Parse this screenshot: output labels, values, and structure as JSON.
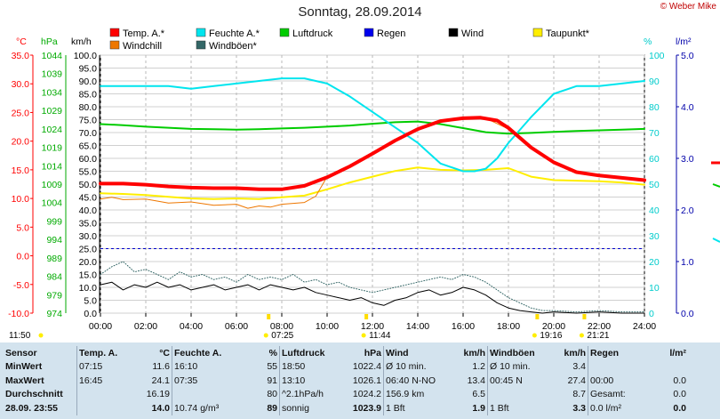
{
  "header": {
    "title": "Sonntag, 28.09.2014",
    "credit": "© Weber Mike"
  },
  "axis_units": {
    "temp": "°C",
    "pressure": "hPa",
    "wind": "km/h",
    "humidity": "%",
    "rain": "l/m²"
  },
  "legend": [
    {
      "label": "Temp. A.*",
      "color": "#ff0000"
    },
    {
      "label": "Feuchte A.*",
      "color": "#00e5ee"
    },
    {
      "label": "Luftdruck",
      "color": "#00cc00"
    },
    {
      "label": "Regen",
      "color": "#0000ee"
    },
    {
      "label": "Wind",
      "color": "#000000"
    },
    {
      "label": "Taupunkt*",
      "color": "#ffee00"
    },
    {
      "label": "Windchill",
      "color": "#ee7700"
    },
    {
      "label": "Windböen*",
      "color": "#336666"
    }
  ],
  "time_marks": [
    {
      "label": "11:50",
      "hour": 0
    },
    {
      "label": "07:25",
      "hour": 7.42
    },
    {
      "label": "11:44",
      "hour": 11.73
    },
    {
      "label": "19:16",
      "hour": 19.27
    },
    {
      "label": "21:21",
      "hour": 21.35
    }
  ],
  "chart_data": {
    "type": "line",
    "x_ticks": [
      "00:00",
      "02:00",
      "04:00",
      "06:00",
      "08:00",
      "10:00",
      "12:00",
      "14:00",
      "16:00",
      "18:00",
      "20:00",
      "22:00",
      "24:00"
    ],
    "x_range": [
      0,
      24
    ],
    "axes": {
      "temp": {
        "min": -10,
        "max": 35,
        "ticks": [
          "35.0",
          "30.0",
          "25.0",
          "20.0",
          "15.0",
          "10.0",
          "5.0",
          "0.0",
          "-5.0",
          "-10.0"
        ],
        "color": "#ff0000"
      },
      "pressure": {
        "min": 974,
        "max": 1044,
        "ticks": [
          "1044",
          "1039",
          "1034",
          "1029",
          "1024",
          "1019",
          "1014",
          "1009",
          "1004",
          "999",
          "994",
          "989",
          "984",
          "979",
          "974"
        ],
        "color": "#00aa00"
      },
      "wind": {
        "min": 0,
        "max": 100,
        "ticks": [
          "100.0",
          "95.0",
          "90.0",
          "85.0",
          "80.0",
          "75.0",
          "70.0",
          "65.0",
          "60.0",
          "55.0",
          "50.0",
          "45.0",
          "40.0",
          "35.0",
          "30.0",
          "25.0",
          "20.0",
          "15.0",
          "10.0",
          "5.0",
          "0.0"
        ],
        "color": "#000000"
      },
      "humidity": {
        "min": 0,
        "max": 100,
        "ticks": [
          "100",
          "90",
          "80",
          "70",
          "60",
          "50",
          "40",
          "30",
          "20",
          "10",
          "0"
        ],
        "color": "#00cccc"
      },
      "rain": {
        "min": 0,
        "max": 5,
        "ticks": [
          "5.0",
          "4.0",
          "3.0",
          "2.0",
          "1.0",
          "0.0"
        ],
        "color": "#0000aa"
      }
    },
    "series": [
      {
        "name": "Temp. A.*",
        "axis": "temp",
        "color": "#ff0000",
        "width": 4,
        "x": [
          0,
          1,
          2,
          3,
          4,
          5,
          6,
          7,
          8,
          9,
          10,
          11,
          12,
          13,
          14,
          15,
          16,
          16.75,
          17.5,
          18,
          19,
          20,
          21,
          22,
          23,
          24
        ],
        "y": [
          12.6,
          12.6,
          12.4,
          12.1,
          11.9,
          11.8,
          11.8,
          11.6,
          11.6,
          12.2,
          13.7,
          15.6,
          17.8,
          20.1,
          22.1,
          23.5,
          24.0,
          24.1,
          23.6,
          22.3,
          18.9,
          16.3,
          14.6,
          14.0,
          13.6,
          13.2
        ]
      },
      {
        "name": "Feuchte A.*",
        "axis": "humidity",
        "color": "#00e5ee",
        "width": 2,
        "x": [
          0,
          1,
          2,
          3,
          4,
          5,
          6,
          7,
          8,
          9,
          10,
          11,
          12,
          13,
          14,
          15,
          16,
          16.5,
          17,
          17.5,
          18,
          19,
          20,
          21,
          22,
          23,
          24
        ],
        "y": [
          88,
          88,
          88,
          88,
          87,
          88,
          89,
          90,
          91,
          91,
          89,
          84,
          78,
          72,
          66,
          58,
          55,
          55,
          56,
          60,
          66,
          76,
          85,
          88,
          88,
          89,
          90
        ]
      },
      {
        "name": "Luftdruck",
        "axis": "pressure",
        "color": "#00cc00",
        "width": 2,
        "x": [
          0,
          1,
          2,
          3,
          4,
          5,
          6,
          7,
          8,
          9,
          10,
          11,
          12,
          13,
          14,
          15,
          16,
          17,
          18,
          19,
          20,
          21,
          22,
          23,
          24
        ],
        "y": [
          1025.3,
          1025.0,
          1024.6,
          1024.3,
          1024.0,
          1023.9,
          1023.8,
          1023.9,
          1024.1,
          1024.3,
          1024.6,
          1024.9,
          1025.4,
          1025.8,
          1026.0,
          1025.3,
          1024.2,
          1023.1,
          1022.7,
          1022.9,
          1023.2,
          1023.4,
          1023.6,
          1023.8,
          1024.0
        ]
      },
      {
        "name": "Windchill",
        "axis": "temp",
        "color": "#ee7700",
        "width": 1,
        "x": [
          0,
          0.5,
          1,
          2,
          3,
          4,
          5,
          6,
          6.5,
          7,
          7.5,
          8,
          9,
          9.5,
          10,
          11,
          12,
          13,
          14,
          15,
          16,
          17,
          18,
          19,
          20,
          21,
          22,
          23,
          24
        ],
        "y": [
          9.9,
          10.2,
          9.8,
          9.9,
          9.2,
          9.4,
          8.8,
          9.0,
          8.3,
          8.7,
          8.5,
          9.0,
          9.3,
          10.4,
          13.8,
          15.4,
          17.6,
          20.0,
          22.0,
          23.3,
          23.9,
          24.0,
          22.1,
          18.8,
          16.3,
          14.6,
          14.0,
          13.6,
          13.2
        ]
      },
      {
        "name": "Taupunkt*",
        "axis": "temp",
        "color": "#ffee00",
        "width": 2,
        "x": [
          0,
          1,
          2,
          3,
          4,
          5,
          6,
          7,
          8,
          9,
          10,
          11,
          12,
          13,
          14,
          15,
          16,
          17,
          18,
          19,
          20,
          21,
          22,
          23,
          24
        ],
        "y": [
          10.9,
          10.8,
          10.6,
          10.3,
          10.0,
          9.9,
          10.0,
          9.9,
          10.2,
          10.5,
          11.6,
          12.8,
          13.8,
          14.8,
          15.4,
          15.0,
          14.9,
          15.0,
          15.3,
          13.8,
          13.2,
          13.1,
          13.0,
          12.8,
          12.4
        ]
      },
      {
        "name": "Windböen*",
        "axis": "wind",
        "color": "#336666",
        "width": 1,
        "dotted": true,
        "x": [
          0,
          0.5,
          1,
          1.5,
          2,
          2.5,
          3,
          3.5,
          4,
          4.5,
          5,
          5.5,
          6,
          6.5,
          7,
          7.5,
          8,
          8.5,
          9,
          9.5,
          10,
          10.5,
          11,
          11.5,
          12,
          12.5,
          13,
          13.5,
          14,
          14.5,
          15,
          15.5,
          16,
          16.5,
          17,
          17.5,
          18,
          18.5,
          19,
          19.5,
          20,
          21,
          22,
          23,
          24
        ],
        "y": [
          15,
          18,
          20,
          16,
          17,
          15,
          13,
          16,
          14,
          15,
          13,
          14,
          12,
          15,
          13,
          14,
          13,
          15,
          12,
          13,
          11,
          12,
          10,
          9,
          8,
          9,
          10,
          11,
          12,
          13,
          14,
          13,
          15,
          14,
          12,
          9,
          6,
          4,
          2,
          1,
          1,
          0.5,
          1,
          0.5,
          0.5
        ]
      },
      {
        "name": "Wind",
        "axis": "wind",
        "color": "#000000",
        "width": 1,
        "x": [
          0,
          0.5,
          1,
          1.5,
          2,
          2.5,
          3,
          3.5,
          4,
          4.5,
          5,
          5.5,
          6,
          6.5,
          7,
          7.5,
          8,
          8.5,
          9,
          9.5,
          10,
          10.5,
          11,
          11.5,
          12,
          12.5,
          13,
          13.5,
          14,
          14.5,
          15,
          15.5,
          16,
          16.5,
          17,
          17.5,
          18,
          18.5,
          19,
          19.5,
          20,
          21,
          22,
          23,
          24
        ],
        "y": [
          11,
          12,
          9,
          11,
          10,
          12,
          10,
          11,
          9,
          10,
          11,
          9,
          10,
          11,
          9,
          11,
          10,
          9,
          10,
          8,
          7,
          6,
          5,
          6,
          4,
          3,
          5,
          6,
          8,
          9,
          7,
          8,
          10,
          9,
          7,
          4,
          2,
          1,
          0.5,
          0,
          0.5,
          0,
          0.5,
          0,
          0
        ]
      }
    ],
    "reference_lines": [
      {
        "axis": "rain",
        "value": 1.25,
        "color": "#0000cc",
        "dashed": true
      }
    ]
  },
  "table": {
    "headers": [
      "Sensor",
      "Temp. A.",
      "°C",
      "Feuchte A.",
      "%",
      "Luftdruck",
      "hPa",
      "Wind",
      "km/h",
      "Windböen",
      "km/h",
      "Regen",
      "l/m²"
    ],
    "rows": [
      [
        "MinWert",
        "07:15",
        "11.6",
        "16:10",
        "55",
        "18:50",
        "1022.4",
        "Ø 10 min.",
        "1.2",
        "Ø 10 min.",
        "3.4",
        "",
        ""
      ],
      [
        "MaxWert",
        "16:45",
        "24.1",
        "07:35",
        "91",
        "13:10",
        "1026.1",
        "06:40   N-NO",
        "13.4",
        "00:45   N",
        "27.4",
        "00:00",
        "0.0"
      ],
      [
        "Durchschnitt",
        "",
        "16.19",
        "",
        "80",
        "^2.1hPa/h",
        "1024.2",
        "156.9 km",
        "6.5",
        "",
        "8.7",
        "Gesamt:",
        "0.0"
      ],
      [
        "28.09.  23:55",
        "",
        "14.0",
        "10.74 g/m³",
        "89",
        "sonnig",
        "1023.9",
        "1 Bft",
        "1.9",
        "1 Bft",
        "3.3",
        "0.0 l/m²",
        "0.0"
      ]
    ]
  }
}
